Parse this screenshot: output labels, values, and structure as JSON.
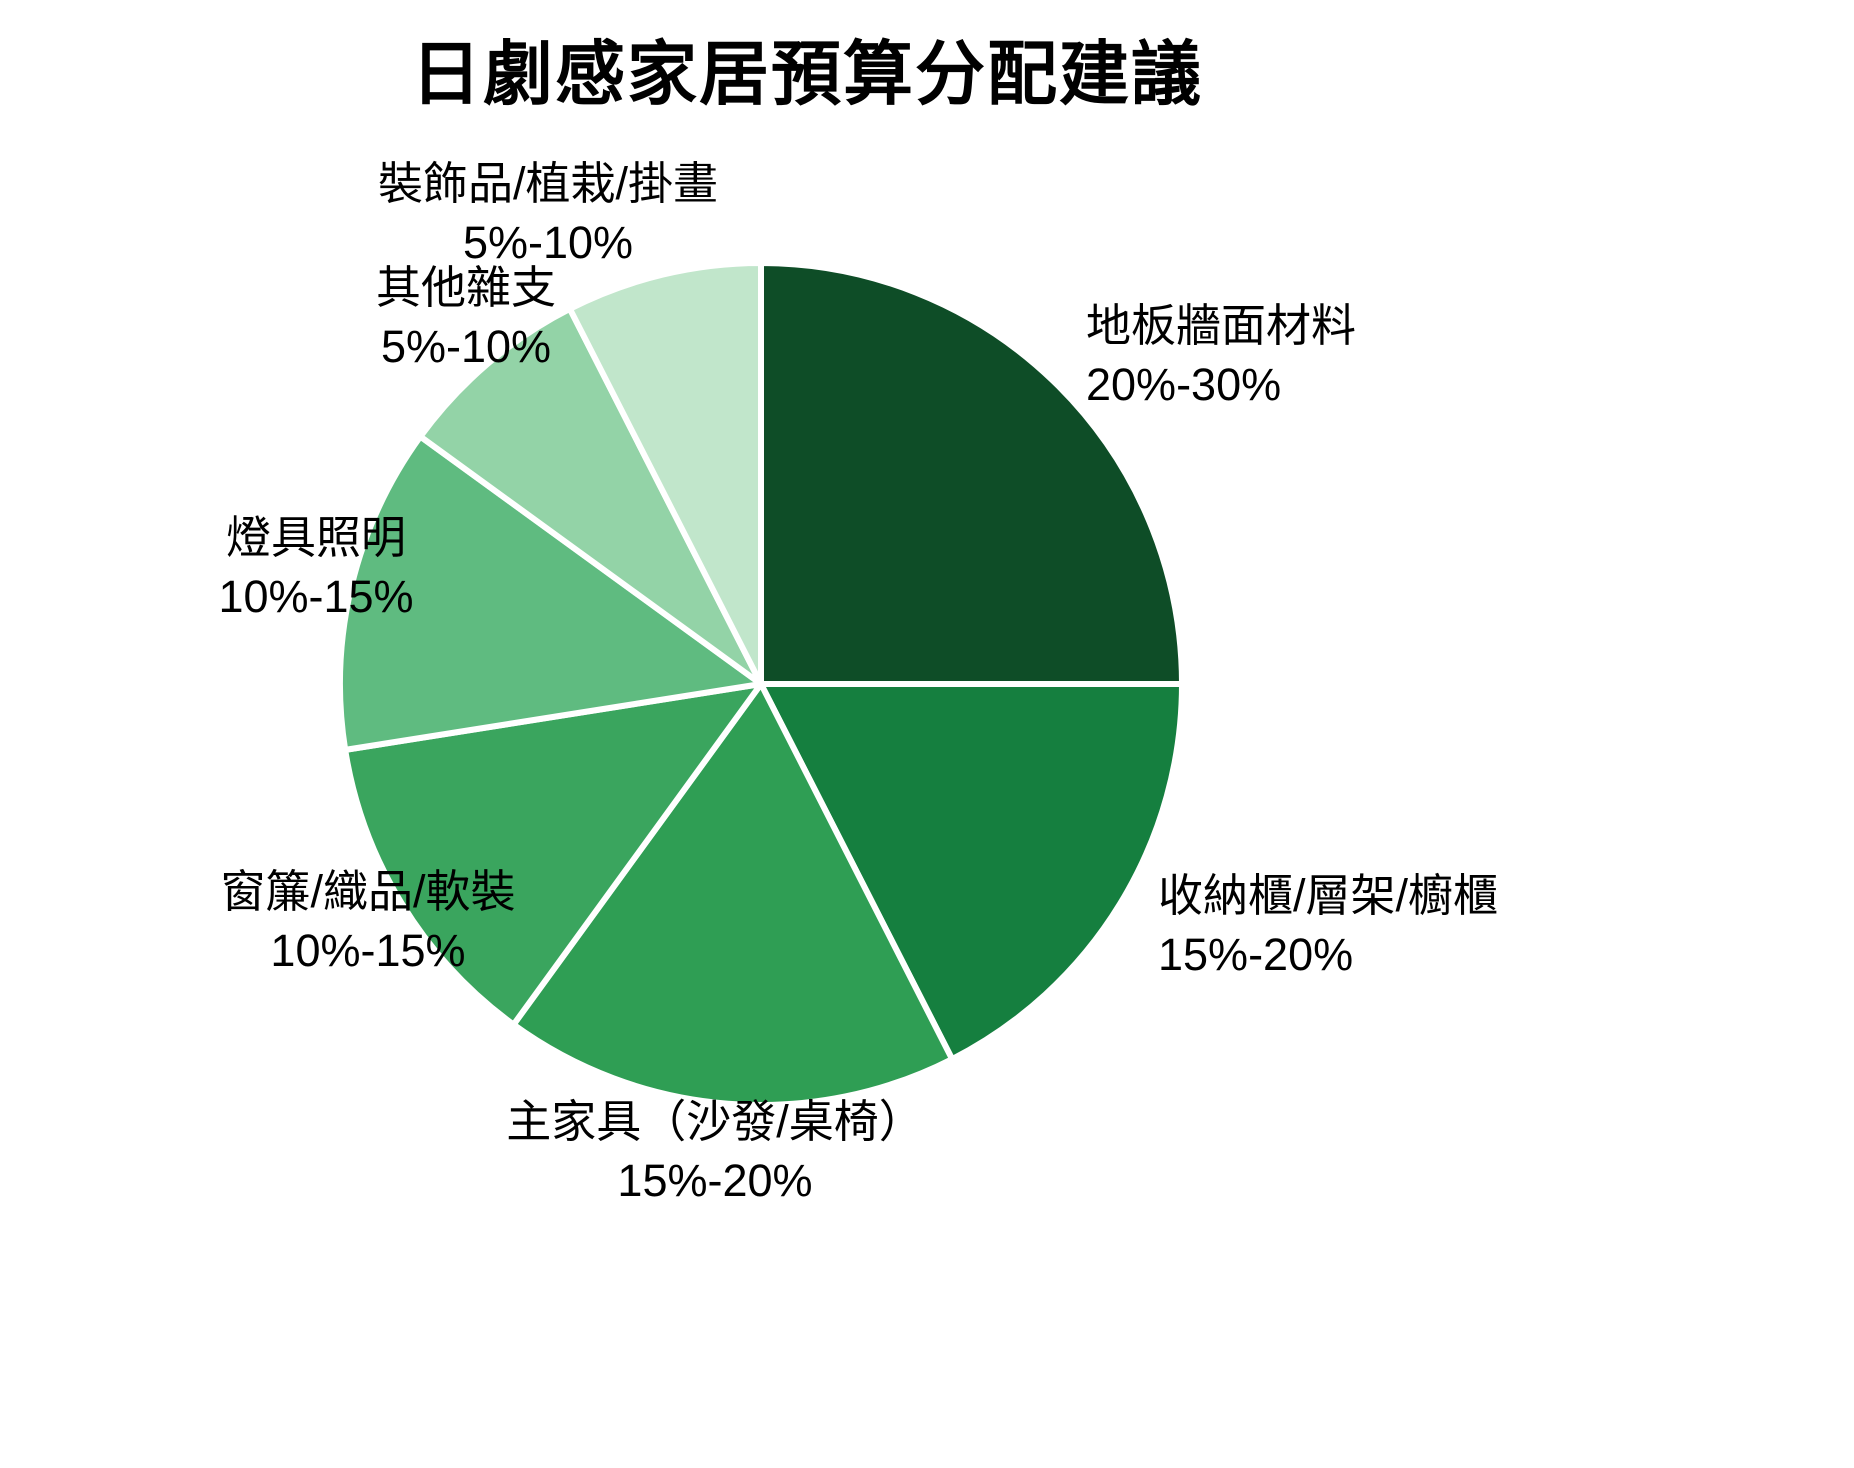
{
  "chart_data": {
    "type": "pie",
    "title": "日劇感家居預算分配建議",
    "legend_position": "none",
    "grid": false,
    "start_angle_deg": -90,
    "direction": "clockwise",
    "stroke_color": "#ffffff",
    "slices": [
      {
        "id": "floor-wall",
        "label": "地板牆面材料",
        "range": "20%-30%",
        "value": 25,
        "color": "#0e4d27"
      },
      {
        "id": "storage",
        "label": "收納櫃/層架/櫥櫃",
        "range": "15%-20%",
        "value": 17.5,
        "color": "#157f3f"
      },
      {
        "id": "furniture",
        "label": "主家具（沙發/桌椅）",
        "range": "15%-20%",
        "value": 17.5,
        "color": "#2f9e54"
      },
      {
        "id": "curtains",
        "label": "窗簾/織品/軟裝",
        "range": "10%-15%",
        "value": 12.5,
        "color": "#3aa55e"
      },
      {
        "id": "lighting",
        "label": "燈具照明",
        "range": "10%-15%",
        "value": 12.5,
        "color": "#5fbb80"
      },
      {
        "id": "misc",
        "label": "其他雜支",
        "range": "5%-10%",
        "value": 7.5,
        "color": "#93d3a7"
      },
      {
        "id": "decor",
        "label": "裝飾品/植栽/掛畫",
        "range": "5%-10%",
        "value": 7.5,
        "color": "#c1e6cb"
      }
    ]
  }
}
